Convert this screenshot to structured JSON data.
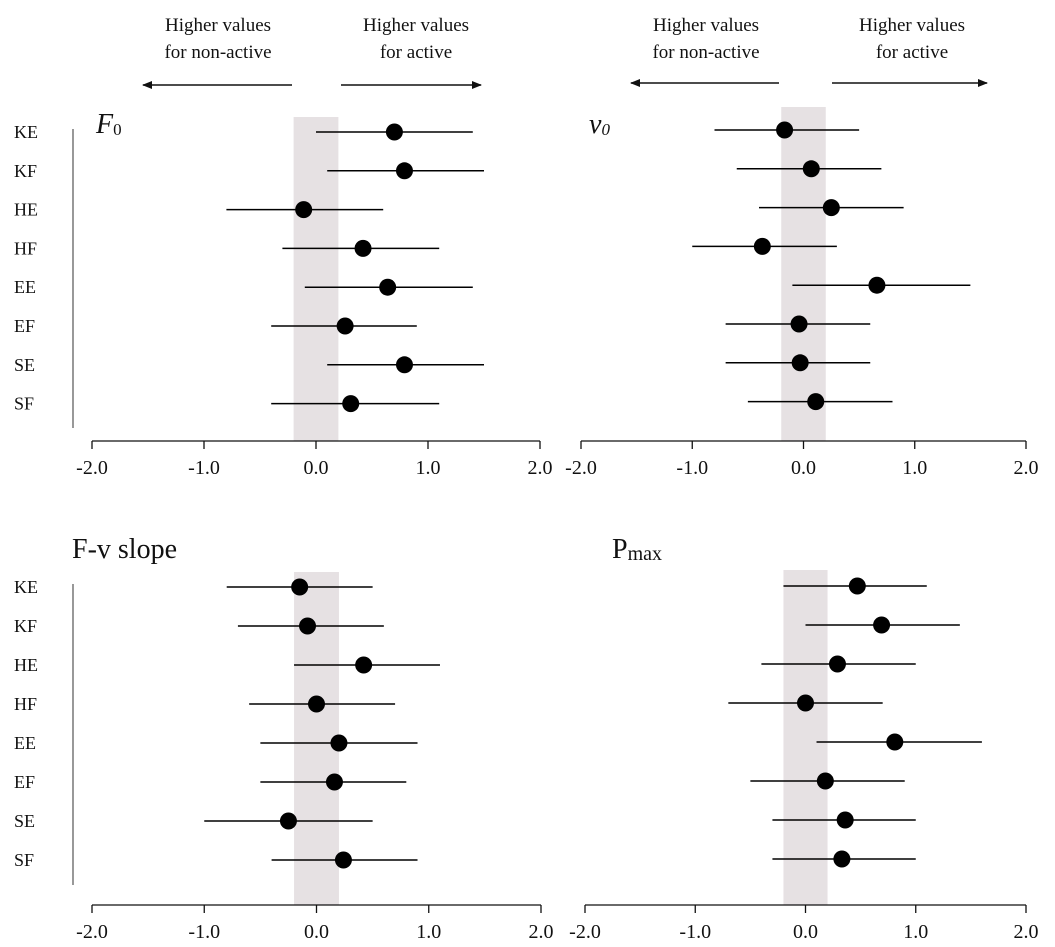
{
  "header": {
    "left": {
      "line1": "Higher values",
      "line2": "for non-active"
    },
    "right": {
      "line1": "Higher values",
      "line2": "for active"
    }
  },
  "chart_data": [
    {
      "type": "forest",
      "title": {
        "main": "F",
        "sub": "0"
      },
      "categories": [
        "KE",
        "KF",
        "HE",
        "HF",
        "EE",
        "EF",
        "SE",
        "SF"
      ],
      "estimate": [
        0.7,
        0.79,
        -0.11,
        0.42,
        0.64,
        0.26,
        0.79,
        0.31
      ],
      "ci_low": [
        0.0,
        0.1,
        -0.8,
        -0.3,
        -0.1,
        -0.4,
        0.1,
        -0.4
      ],
      "ci_high": [
        1.4,
        1.5,
        0.6,
        1.1,
        1.4,
        0.9,
        1.5,
        1.1
      ],
      "xlim": [
        -2.0,
        2.0
      ],
      "xticks": [
        "-2.0",
        "-1.0",
        "0.0",
        "1.0",
        "2.0"
      ],
      "shaded_band": [
        -0.2,
        0.2
      ],
      "grid": false
    },
    {
      "type": "forest",
      "title": {
        "main": "v",
        "sub": "0"
      },
      "categories": [
        "KE",
        "KF",
        "HE",
        "HF",
        "EE",
        "EF",
        "SE",
        "SF"
      ],
      "estimate": [
        -0.17,
        0.07,
        0.25,
        -0.37,
        0.66,
        -0.04,
        -0.03,
        0.11
      ],
      "ci_low": [
        -0.8,
        -0.6,
        -0.4,
        -1.0,
        -0.1,
        -0.7,
        -0.7,
        -0.5
      ],
      "ci_high": [
        0.5,
        0.7,
        0.9,
        0.3,
        1.5,
        0.6,
        0.6,
        0.8
      ],
      "xlim": [
        -2.0,
        2.0
      ],
      "xticks": [
        "-2.0",
        "-1.0",
        "0.0",
        "1.0",
        "2.0"
      ],
      "shaded_band": [
        -0.2,
        0.2
      ],
      "grid": false
    },
    {
      "type": "forest",
      "title": {
        "main": "F-v slope",
        "sub": ""
      },
      "categories": [
        "KE",
        "KF",
        "HE",
        "HF",
        "EE",
        "EF",
        "SE",
        "SF"
      ],
      "estimate": [
        -0.15,
        -0.08,
        0.42,
        0.0,
        0.2,
        0.16,
        -0.25,
        0.24
      ],
      "ci_low": [
        -0.8,
        -0.7,
        -0.2,
        -0.6,
        -0.5,
        -0.5,
        -1.0,
        -0.4
      ],
      "ci_high": [
        0.5,
        0.6,
        1.1,
        0.7,
        0.9,
        0.8,
        0.5,
        0.9
      ],
      "xlim": [
        -2.0,
        2.0
      ],
      "xticks": [
        "-2.0",
        "-1.0",
        "0.0",
        "1.0",
        "2.0"
      ],
      "shaded_band": [
        -0.2,
        0.2
      ],
      "grid": false
    },
    {
      "type": "forest",
      "title": {
        "main": "P",
        "sub": "max"
      },
      "categories": [
        "KE",
        "KF",
        "HE",
        "HF",
        "EE",
        "EF",
        "SE",
        "SF"
      ],
      "estimate": [
        0.47,
        0.69,
        0.29,
        0.0,
        0.81,
        0.18,
        0.36,
        0.33
      ],
      "ci_low": [
        -0.2,
        0.0,
        -0.4,
        -0.7,
        0.1,
        -0.5,
        -0.3,
        -0.3
      ],
      "ci_high": [
        1.1,
        1.4,
        1.0,
        0.7,
        1.6,
        0.9,
        1.0,
        1.0
      ],
      "xlim": [
        -2.0,
        2.0
      ],
      "xticks": [
        "-2.0",
        "-1.0",
        "0.0",
        "1.0",
        "2.0"
      ],
      "shaded_band": [
        -0.2,
        0.2
      ],
      "grid": false
    }
  ],
  "colors": {
    "band": "#e6e1e3",
    "marker": "#000000",
    "line": "#000000"
  }
}
